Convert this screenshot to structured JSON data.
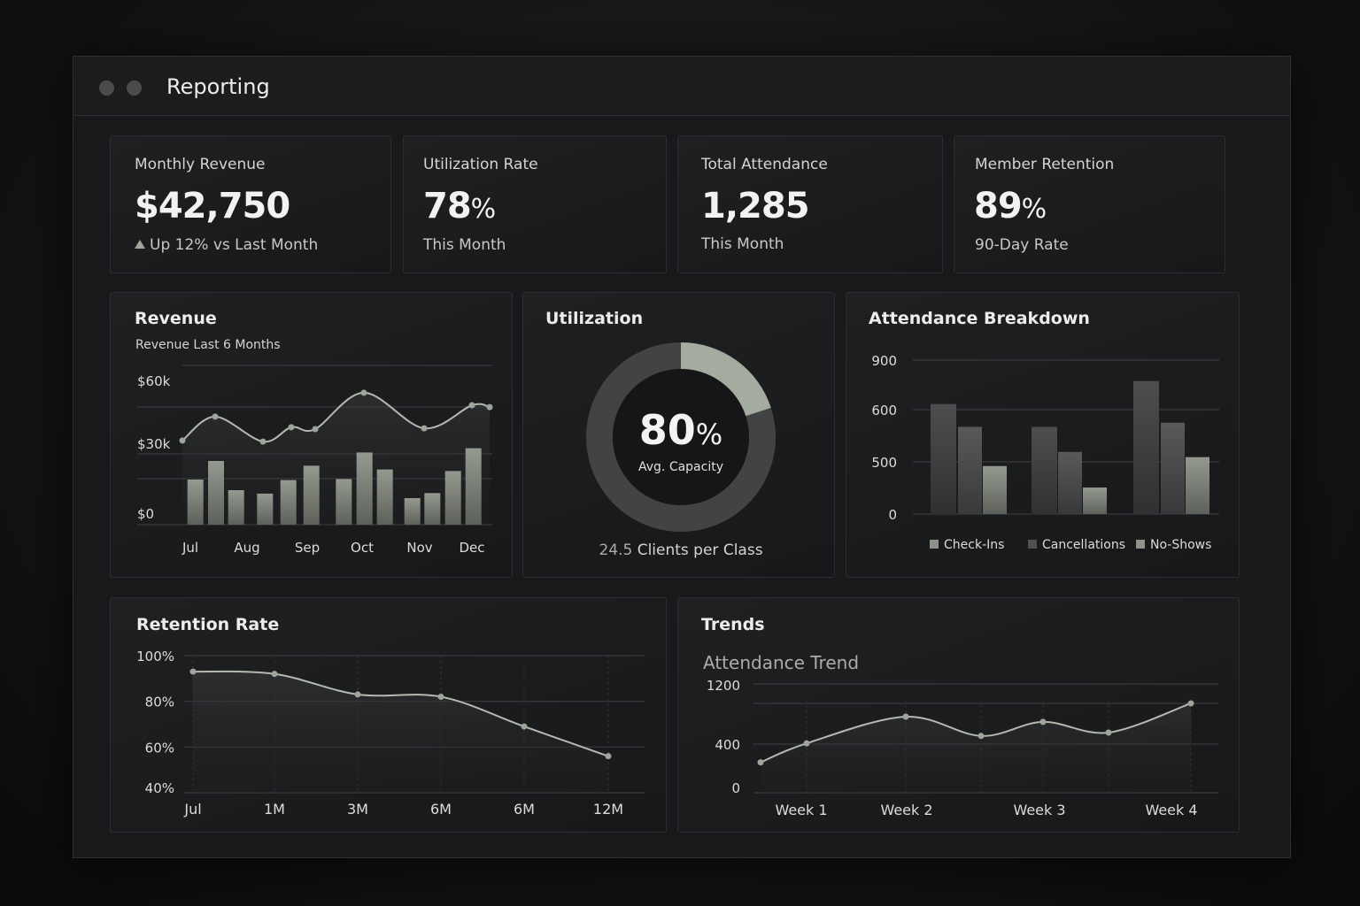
{
  "window": {
    "title": "Reporting"
  },
  "kpis": [
    {
      "label": "Monthly Revenue",
      "value": "$42,750",
      "unit": "",
      "sub": "Up 12% vs Last Month",
      "icon": "trend-up-icon"
    },
    {
      "label": "Utilization Rate",
      "value": "78",
      "unit": "%",
      "sub": "This Month"
    },
    {
      "label": "Total Attendance",
      "value": "1,285",
      "unit": "",
      "sub": "This Month"
    },
    {
      "label": "Member Retention",
      "value": "89",
      "unit": "%",
      "sub": "90-Day Rate"
    }
  ],
  "colors": {
    "accent": "#9ea59a",
    "bar_dark": "#3e4042",
    "bar_mid": "#55585a",
    "bar_light": "#8d9289",
    "background": "#19191b",
    "card": "#1e1f21"
  },
  "utilization": {
    "title": "Utilization",
    "value": "80",
    "unit": "%",
    "label": "Avg. Capacity",
    "clients_value": "24.5",
    "clients_label": "Clients per Class",
    "highlight_fraction": 0.2
  },
  "trends": {
    "title": "Trends",
    "subtitle": "Attendance Trend"
  },
  "chart_data": [
    {
      "type": "bar+line",
      "title": "Revenue",
      "subtitle": "Revenue Last 6 Months",
      "y_ticks": [
        "$0",
        "$30k",
        "$60k"
      ],
      "ylim": [
        0,
        60000
      ],
      "categories": [
        "Jul",
        "Aug",
        "Sep",
        "Oct",
        "Nov",
        "Dec"
      ],
      "bar_values": [
        17000,
        24000,
        13000,
        11700,
        16800,
        22200,
        17200,
        27200,
        20800,
        10000,
        11900,
        20200,
        28800
      ],
      "line_values": [
        31700,
        40700,
        31300,
        36700,
        36000,
        49700,
        36300,
        45000,
        44300
      ],
      "grid": true
    },
    {
      "type": "bar",
      "title": "Attendance Breakdown",
      "y_ticks": [
        "0",
        "500",
        "600",
        "900"
      ],
      "series": [
        {
          "name": "Check-Ins",
          "values": [
            634,
            567,
            773
          ]
        },
        {
          "name": "Cancellations",
          "values": [
            567,
            519,
            575
          ]
        },
        {
          "name": "No-Shows",
          "values": [
            460,
            254,
            509
          ]
        }
      ],
      "legend": "bottom",
      "grid": true
    },
    {
      "type": "line",
      "title": "Retention Rate",
      "y_ticks": [
        "40%",
        "60%",
        "80%",
        "100%"
      ],
      "ylim": [
        40,
        100
      ],
      "categories": [
        "Jul",
        "1M",
        "3M",
        "6M",
        "6M",
        "12M"
      ],
      "values": [
        93,
        92,
        83,
        82,
        69,
        56
      ],
      "grid": true
    },
    {
      "type": "line",
      "title": "Attendance Trend",
      "y_ticks": [
        "0",
        "400",
        "1200"
      ],
      "x_labels": [
        "Week 1",
        "Week 2",
        "Week 3",
        "Week 4"
      ],
      "values": [
        250,
        410,
        770,
        510,
        700,
        555,
        950
      ],
      "grid": true
    }
  ]
}
